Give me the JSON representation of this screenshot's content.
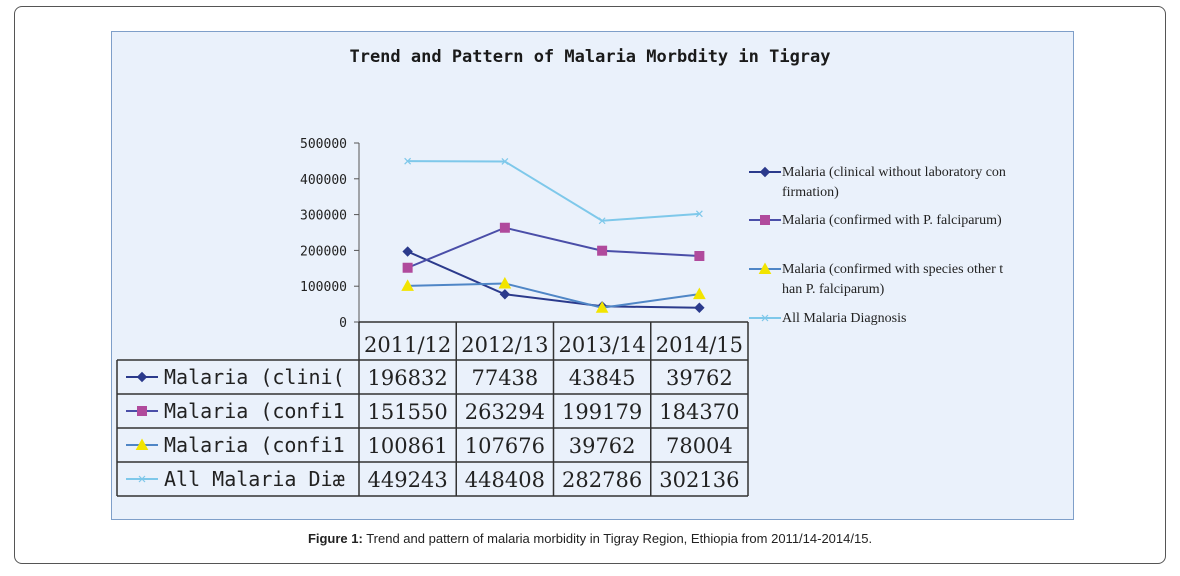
{
  "chart_data": {
    "type": "line",
    "title": "Trend and Pattern of Malaria Morbdity in Tigray",
    "categories": [
      "2011/12",
      "2012/13",
      "2013/14",
      "2014/15"
    ],
    "ylim": [
      0,
      500000
    ],
    "yticks": [
      "0",
      "100000",
      "200000",
      "300000",
      "400000",
      "500000"
    ],
    "legend_position": "right",
    "series": [
      {
        "name": "Malaria (clinical without laboratory confirmation)",
        "legend_lines": [
          "Malaria (clinical without laboratory con",
          "firmation)"
        ],
        "table_label": "Malaria (clini(",
        "color": "#2b3a8c",
        "marker": "diamond",
        "values": [
          196832,
          77438,
          43845,
          39762
        ]
      },
      {
        "name": "Malaria (confirmed with P. falciparum)",
        "legend_lines": [
          "Malaria (confirmed with P. falciparum)"
        ],
        "table_label": "Malaria (confi1",
        "color": "#4a4ea8",
        "marker_color": "#b04a9c",
        "marker": "square",
        "values": [
          151550,
          263294,
          199179,
          184370
        ]
      },
      {
        "name": "Malaria (confirmed with species other than P. falciparum)",
        "legend_lines": [
          "Malaria (confirmed with species other t",
          "han P. falciparum)"
        ],
        "table_label": "Malaria (confi1",
        "color": "#4f86c6",
        "marker_color": "#f2e400",
        "marker": "triangle",
        "values": [
          100861,
          107676,
          39762,
          78004
        ]
      },
      {
        "name": "All Malaria Diagnosis",
        "legend_lines": [
          "All Malaria Diagnosis"
        ],
        "table_label": "All Malaria Diæ",
        "color": "#7ec8ea",
        "marker": "x",
        "values": [
          449243,
          448408,
          282786,
          302136
        ]
      }
    ]
  },
  "caption": {
    "label": "Figure 1:",
    "text": " Trend and pattern of malaria morbidity in Tigray Region, Ethiopia from 2011/14-2014/15."
  }
}
